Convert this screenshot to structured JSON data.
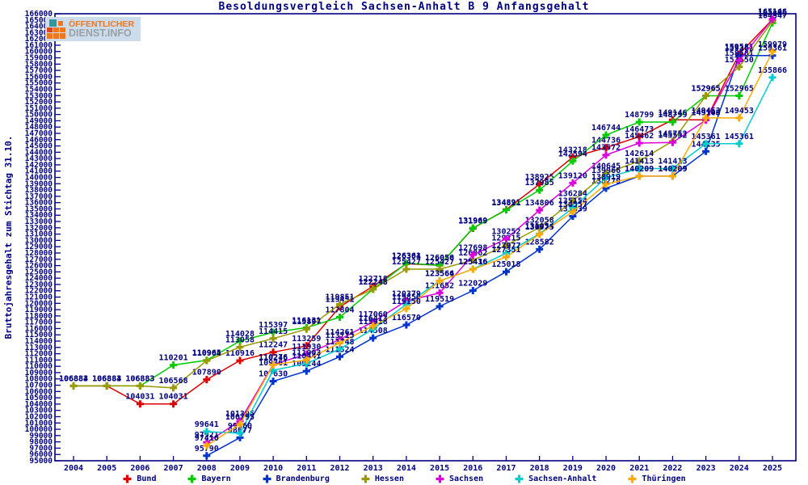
{
  "title": "Besoldungsvergleich Sachsen-Anhalt B 9 Anfangsgehalt",
  "logo": {
    "line1": "ÖFFENTLICHER",
    "line2": "DIENST.INFO",
    "colors": {
      "orange": "#ee7722",
      "gray": "#9aa0a8",
      "teal": "#2f9898",
      "background": "#ccdcea"
    }
  },
  "axes": {
    "ylabel": "Bruttojahresgehalt zum Stichtag 31.10.",
    "y_min": 95000,
    "y_max": 166000,
    "y_step": 1000,
    "axis_color": "#000080"
  },
  "chart_data": {
    "type": "line",
    "title": "Besoldungsvergleich Sachsen-Anhalt B 9 Anfangsgehalt",
    "xlabel": "",
    "ylabel": "Bruttojahresgehalt zum Stichtag 31.10.",
    "ylim": [
      95000,
      166000
    ],
    "grid": false,
    "legend_position": "bottom",
    "point_labels": true,
    "x": [
      2004,
      2005,
      2006,
      2007,
      2008,
      2009,
      2010,
      2011,
      2012,
      2013,
      2014,
      2015,
      2016,
      2017,
      2018,
      2019,
      2020,
      2021,
      2022,
      2023,
      2024,
      2025
    ],
    "series": [
      {
        "name": "Bund",
        "color": "#dd0000",
        "values": [
          106884,
          106884,
          104031,
          104031,
          107890,
          110916,
          112247,
          113259,
          119451,
          122718,
          126304,
          126050,
          131909,
          134891,
          138925,
          143218,
          144736,
          146473,
          149146,
          149146,
          159581,
          165105
        ]
      },
      {
        "name": "Bayern",
        "color": "#00cc00",
        "values": [
          106883,
          106883,
          106883,
          110201,
          110965,
          114028,
          115397,
          116131,
          117804,
          122248,
          126361,
          126056,
          131969,
          134821,
          137985,
          142594,
          146744,
          148799,
          148799,
          152965,
          152965,
          164547
        ]
      },
      {
        "name": "Brandenburg",
        "color": "#0033cc",
        "values": [
          null,
          null,
          null,
          null,
          95790,
          98677,
          107630,
          109244,
          111524,
          114508,
          116570,
          119519,
          122029,
          125018,
          128582,
          133839,
          138279,
          140209,
          140209,
          144135,
          159361,
          159361
        ]
      },
      {
        "name": "Hessen",
        "color": "#999900",
        "values": [
          106883,
          106883,
          106883,
          106568,
          110904,
          113058,
          114415,
          115897,
          119851,
          122248,
          125427,
          125427,
          126862,
          129215,
          132058,
          136284,
          140645,
          142614,
          145752,
          152965,
          157550,
          164849
        ]
      },
      {
        "name": "Sachsen",
        "color": "#dd00dd",
        "values": [
          null,
          null,
          null,
          null,
          97921,
          101305,
          110276,
          111930,
          114261,
          117060,
          120379,
          121652,
          127698,
          130252,
          134806,
          139120,
          143572,
          145462,
          145552,
          149103,
          158581,
          165146
        ]
      },
      {
        "name": "Sachsen-Anhalt",
        "color": "#00cccc",
        "values": [
          null,
          null,
          null,
          null,
          99641,
          99360,
          109361,
          110441,
          112748,
          115918,
          119850,
          123564,
          125436,
          127977,
          131054,
          135154,
          139966,
          141413,
          141413,
          145361,
          145361,
          155866
        ]
      },
      {
        "name": "Thüringen",
        "color": "#ffaa00",
        "values": [
          null,
          null,
          null,
          null,
          97416,
          100795,
          110246,
          111003,
          113715,
          116413,
          119150,
          123566,
          125416,
          127351,
          130975,
          134557,
          138919,
          140209,
          140209,
          149453,
          149453,
          159979
        ]
      }
    ]
  }
}
